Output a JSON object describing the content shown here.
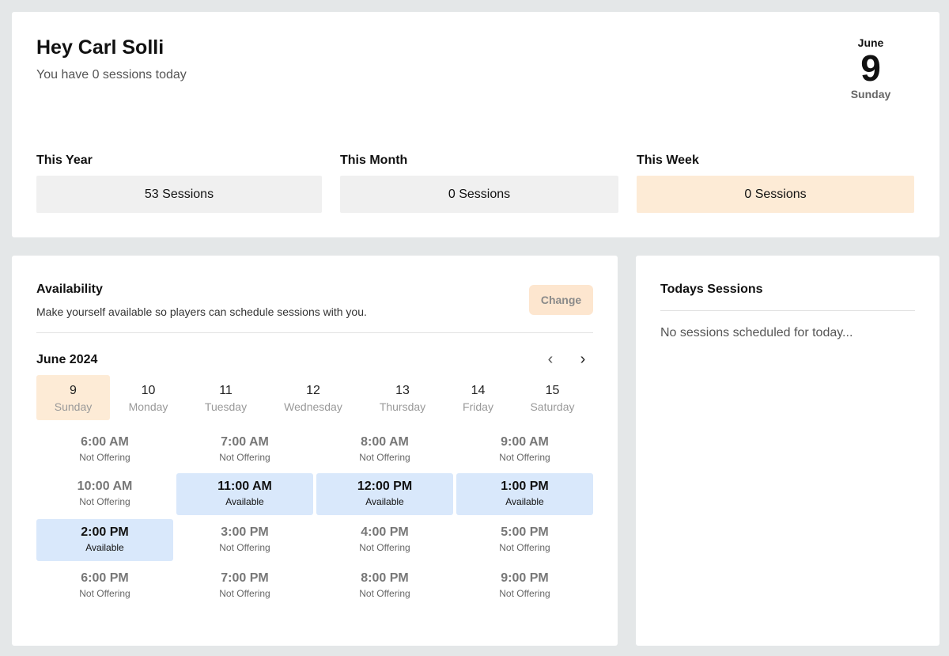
{
  "header": {
    "greeting": "Hey Carl Solli",
    "subtitle": "You have 0 sessions today"
  },
  "date": {
    "month": "June",
    "day": "9",
    "weekday": "Sunday"
  },
  "stats": [
    {
      "label": "This Year",
      "value": "53 Sessions"
    },
    {
      "label": "This Month",
      "value": "0 Sessions"
    },
    {
      "label": "This Week",
      "value": "0 Sessions"
    }
  ],
  "availability": {
    "title": "Availability",
    "subtitle": "Make yourself available so players can schedule sessions with you.",
    "change_label": "Change",
    "month_label": "June 2024",
    "prev_icon": "‹",
    "next_icon": "›",
    "days": [
      {
        "num": "9",
        "name": "Sunday",
        "selected": true
      },
      {
        "num": "10",
        "name": "Monday"
      },
      {
        "num": "11",
        "name": "Tuesday"
      },
      {
        "num": "12",
        "name": "Wednesday"
      },
      {
        "num": "13",
        "name": "Thursday"
      },
      {
        "num": "14",
        "name": "Friday"
      },
      {
        "num": "15",
        "name": "Saturday"
      }
    ],
    "slots": [
      {
        "time": "6:00 AM",
        "status": "Not Offering"
      },
      {
        "time": "7:00 AM",
        "status": "Not Offering"
      },
      {
        "time": "8:00 AM",
        "status": "Not Offering"
      },
      {
        "time": "9:00 AM",
        "status": "Not Offering"
      },
      {
        "time": "10:00 AM",
        "status": "Not Offering"
      },
      {
        "time": "11:00 AM",
        "status": "Available"
      },
      {
        "time": "12:00 PM",
        "status": "Available"
      },
      {
        "time": "1:00 PM",
        "status": "Available"
      },
      {
        "time": "2:00 PM",
        "status": "Available"
      },
      {
        "time": "3:00 PM",
        "status": "Not Offering"
      },
      {
        "time": "4:00 PM",
        "status": "Not Offering"
      },
      {
        "time": "5:00 PM",
        "status": "Not Offering"
      },
      {
        "time": "6:00 PM",
        "status": "Not Offering"
      },
      {
        "time": "7:00 PM",
        "status": "Not Offering"
      },
      {
        "time": "8:00 PM",
        "status": "Not Offering"
      },
      {
        "time": "9:00 PM",
        "status": "Not Offering"
      }
    ]
  },
  "today": {
    "title": "Todays Sessions",
    "empty_text": "No sessions scheduled for today..."
  },
  "colors": {
    "accent_peach": "#fdebd6",
    "available_blue": "#d9e8fb",
    "background": "#e4e7e8"
  }
}
